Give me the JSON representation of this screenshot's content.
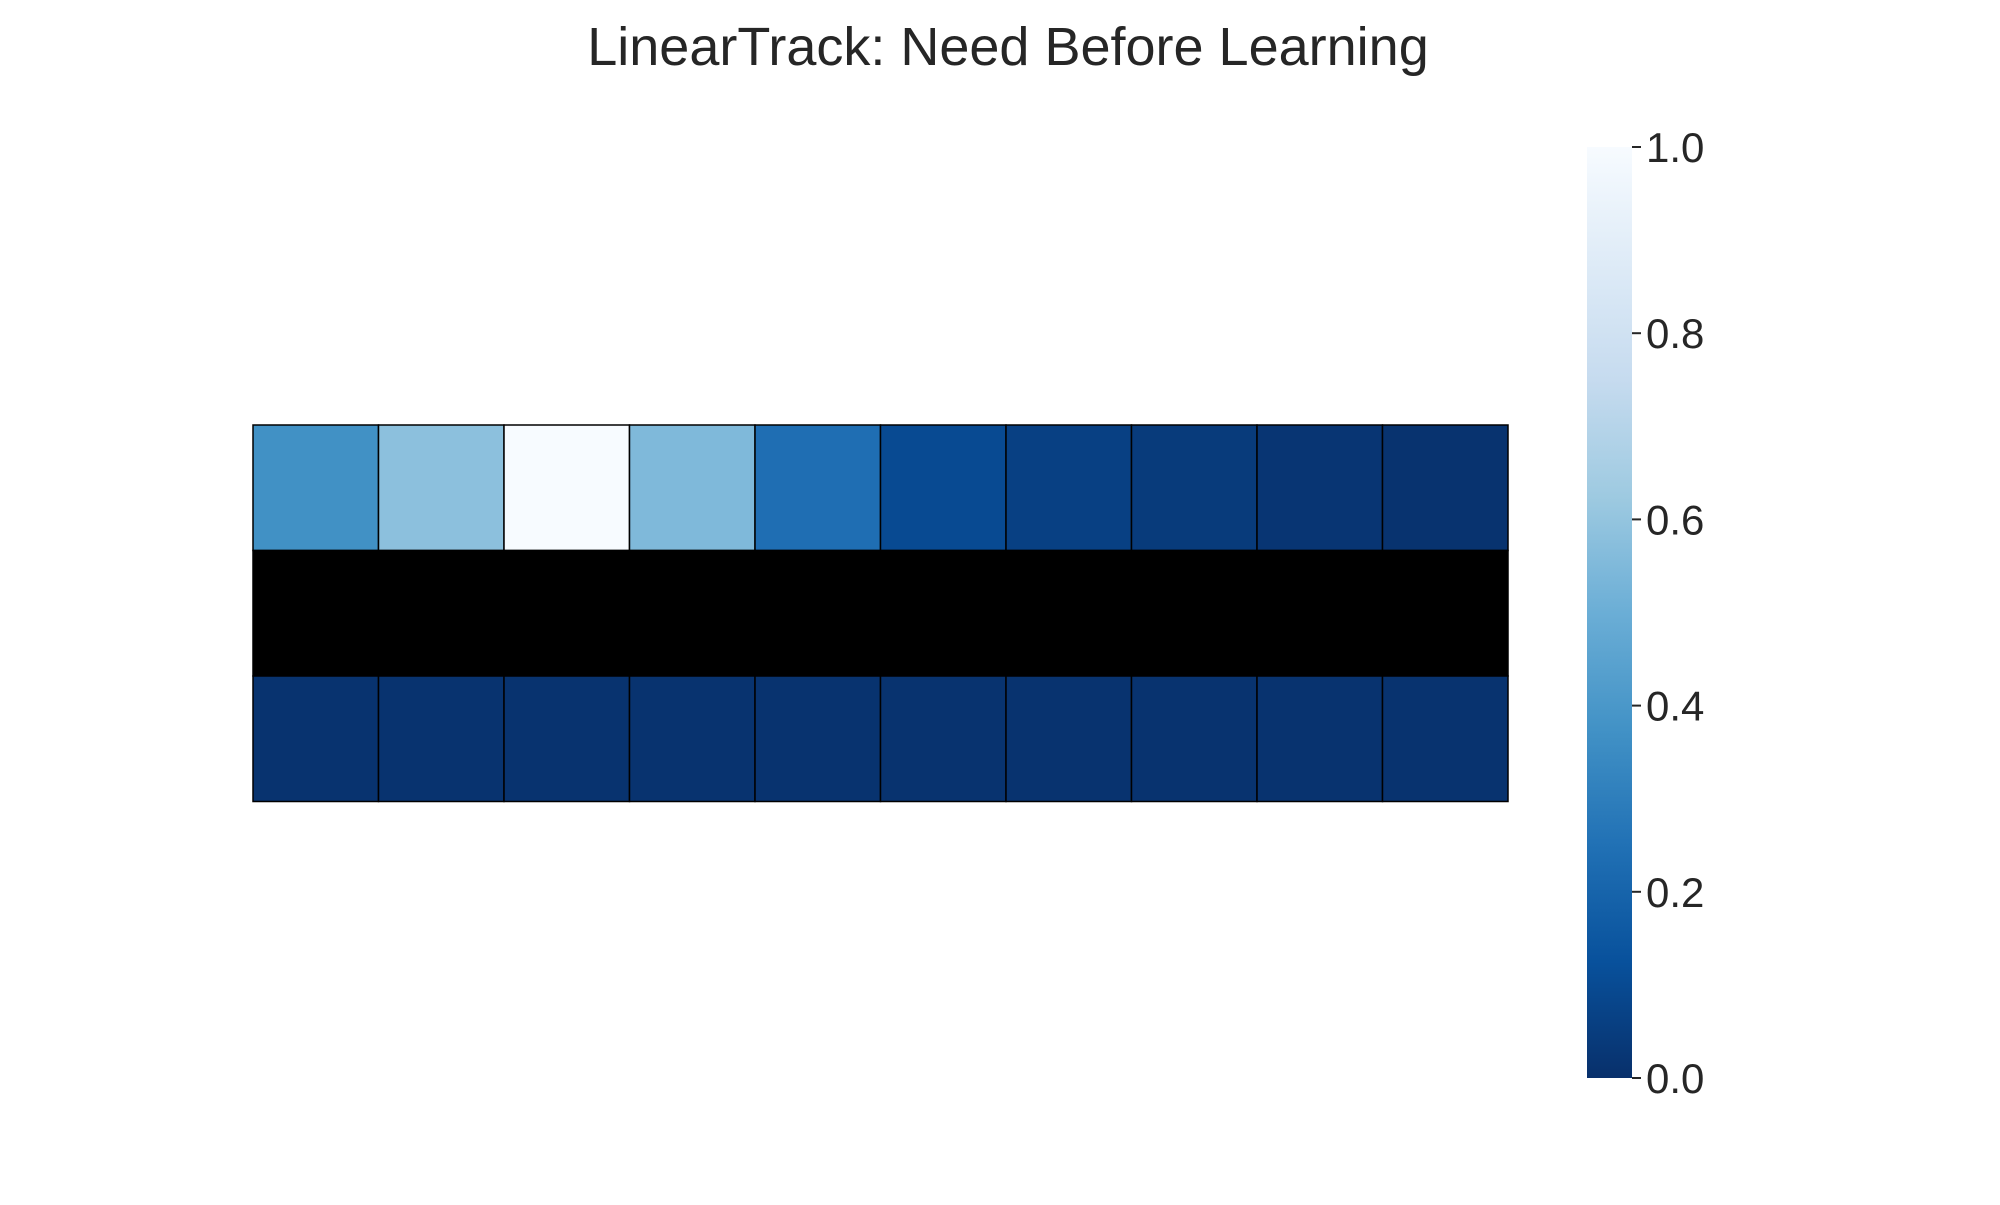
{
  "chart_data": {
    "type": "heatmap",
    "title": "LinearTrack: Need Before Learning",
    "xlabel": "",
    "ylabel": "",
    "colormap": "Blues_r",
    "vmin": 0.0,
    "vmax": 1.0,
    "masked_color": "#000000",
    "cell_edge_color": "#000000",
    "grid": false,
    "rows": [
      [
        0.37,
        0.58,
        1.0,
        0.55,
        0.24,
        0.1,
        0.06,
        0.04,
        0.02,
        0.01
      ],
      [
        null,
        null,
        null,
        null,
        null,
        null,
        null,
        null,
        null,
        null
      ],
      [
        0.01,
        0.01,
        0.01,
        0.01,
        0.01,
        0.01,
        0.01,
        0.01,
        0.01,
        0.01
      ]
    ],
    "colorbar": {
      "ticks": [
        0.0,
        0.2,
        0.4,
        0.6,
        0.8,
        1.0
      ],
      "tick_labels": [
        "0.0",
        "0.2",
        "0.4",
        "0.6",
        "0.8",
        "1.0"
      ],
      "placement": "right"
    }
  }
}
